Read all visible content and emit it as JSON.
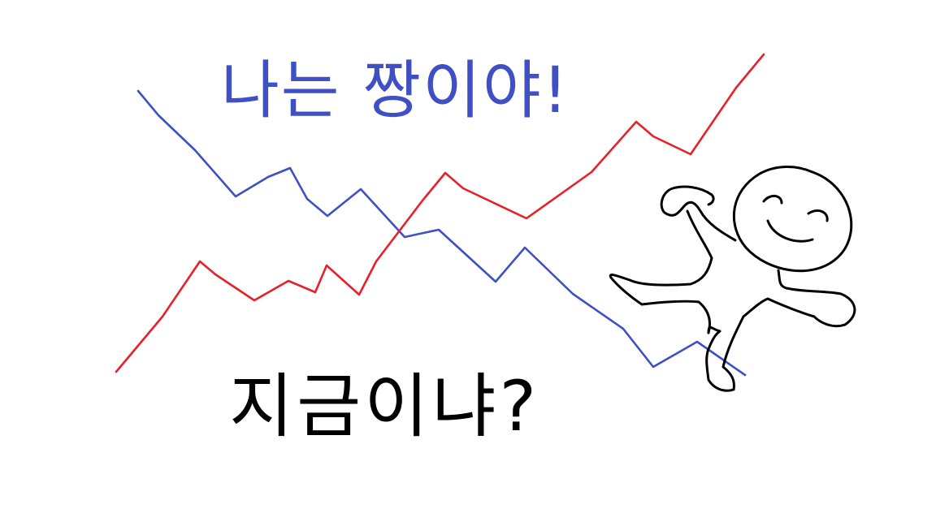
{
  "drawing": {
    "top_text": "나는 짱이야!",
    "bottom_text": "지금이냐?",
    "colors": {
      "background": "#ffffff",
      "top_text": "#3f4fc4",
      "bottom_text": "#000000",
      "rising_line": "#e8202a",
      "falling_line": "#3f4fc4",
      "figure": "#000000"
    },
    "lines": [
      {
        "name": "rising-red-line",
        "color": "#e8202a"
      },
      {
        "name": "falling-blue-line",
        "color": "#3f4fc4"
      }
    ],
    "figure": {
      "description_icon": "stick-figure-smiling-flexing"
    }
  }
}
